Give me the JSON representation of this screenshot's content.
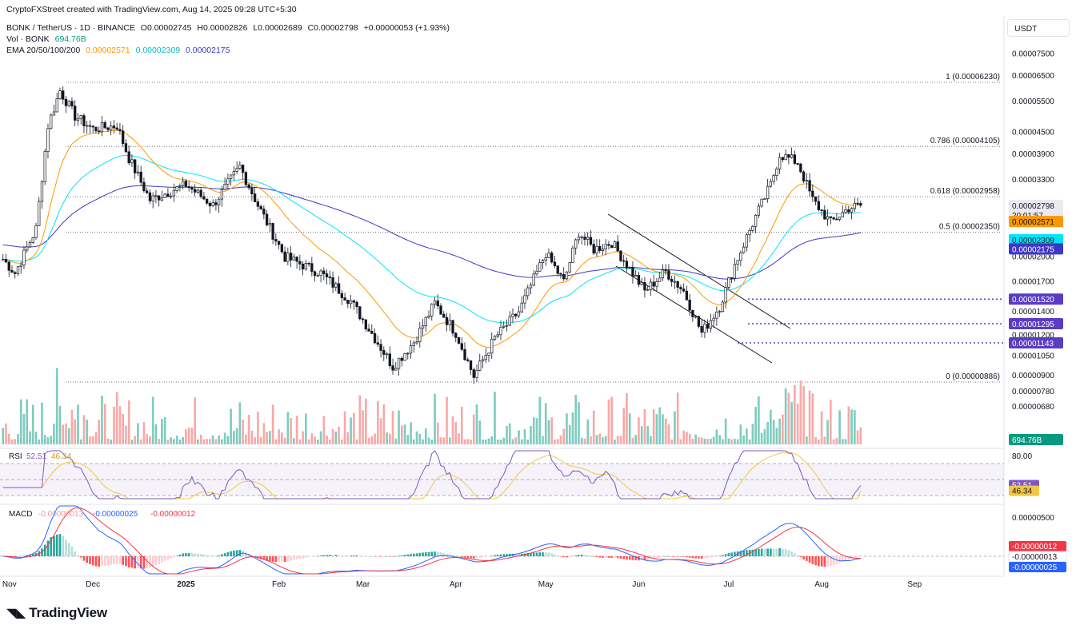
{
  "attribution": "CryptoFXStreet created with TradingView.com, Aug 14, 2025 09:28 UTC+5:30",
  "header": {
    "symbol": "BONK / TetherUS · 1D · BINANCE",
    "open": "O0.00002745",
    "high": "H0.00002826",
    "low": "L0.00002689",
    "close": "C0.00002798",
    "change": "+0.00000053 (+1.93%)",
    "vol_label": "Vol · BONK",
    "vol_value": "694.76B",
    "ema_label": "EMA 20/50/100/200",
    "ema20": "0.00002571",
    "ema50": "0.00002309",
    "ema200": "0.00002175"
  },
  "currency_button": "USDT",
  "brand": "TradingView",
  "colors": {
    "up": "#089981",
    "down": "#f23645",
    "ema20": "#ff9800",
    "ema50": "#00e5ff",
    "ema200": "#3f37c9",
    "fib": "#787b86",
    "support": "#5b3cc4",
    "rsi": "#7e57c2",
    "rsi_ma": "#f2c744",
    "macd": "#2962ff",
    "signal": "#f23645"
  },
  "chart_data": {
    "type": "candlestick",
    "price_scale": "log",
    "y_ticks": [
      "0.00007500",
      "0.00006500",
      "0.00005500",
      "0.00004500",
      "0.00003900",
      "0.00003300",
      "0.00002000",
      "0.00001700",
      "0.00001400",
      "0.00001200",
      "0.00001050",
      "0.00000900",
      "0.00000780",
      "0.00000680"
    ],
    "x_ticks": [
      "Nov",
      "Dec",
      "2025",
      "Feb",
      "Mar",
      "Apr",
      "May",
      "Jun",
      "Jul",
      "Aug",
      "Sep"
    ],
    "price_path": [
      [
        "2024-11-01",
        1.97e-05
      ],
      [
        "2024-11-05",
        1.8e-05
      ],
      [
        "2024-11-12",
        2.4e-05
      ],
      [
        "2024-11-16",
        4.7e-05
      ],
      [
        "2024-11-20",
        5.9e-05
      ],
      [
        "2024-11-25",
        5e-05
      ],
      [
        "2024-12-01",
        4.6e-05
      ],
      [
        "2024-12-09",
        4.7e-05
      ],
      [
        "2024-12-13",
        3.8e-05
      ],
      [
        "2024-12-20",
        2.9e-05
      ],
      [
        "2025-01-01",
        3.2e-05
      ],
      [
        "2025-01-10",
        2.8e-05
      ],
      [
        "2025-01-19",
        3.6e-05
      ],
      [
        "2025-01-25",
        2.8e-05
      ],
      [
        "2025-02-03",
        2e-05
      ],
      [
        "2025-02-15",
        1.8e-05
      ],
      [
        "2025-02-25",
        1.5e-05
      ],
      [
        "2025-03-05",
        1.18e-05
      ],
      [
        "2025-03-11",
        9.8e-06
      ],
      [
        "2025-03-18",
        1.15e-05
      ],
      [
        "2025-03-25",
        1.48e-05
      ],
      [
        "2025-04-01",
        1.22e-05
      ],
      [
        "2025-04-07",
        9.2e-06
      ],
      [
        "2025-04-14",
        1.18e-05
      ],
      [
        "2025-04-22",
        1.4e-05
      ],
      [
        "2025-05-01",
        2.05e-05
      ],
      [
        "2025-05-07",
        1.7e-05
      ],
      [
        "2025-05-12",
        2.35e-05
      ],
      [
        "2025-05-17",
        2.1e-05
      ],
      [
        "2025-05-23",
        2.2e-05
      ],
      [
        "2025-05-29",
        1.85e-05
      ],
      [
        "2025-06-03",
        1.6e-05
      ],
      [
        "2025-06-10",
        1.82e-05
      ],
      [
        "2025-06-16",
        1.6e-05
      ],
      [
        "2025-06-22",
        1.22e-05
      ],
      [
        "2025-06-28",
        1.45e-05
      ],
      [
        "2025-07-03",
        1.9e-05
      ],
      [
        "2025-07-10",
        2.6e-05
      ],
      [
        "2025-07-15",
        3.2e-05
      ],
      [
        "2025-07-18",
        3.9e-05
      ],
      [
        "2025-07-24",
        3.7e-05
      ],
      [
        "2025-07-29",
        2.9e-05
      ],
      [
        "2025-08-04",
        2.5e-05
      ],
      [
        "2025-08-10",
        2.75e-05
      ],
      [
        "2025-08-14",
        2.798e-05
      ]
    ],
    "fib_levels": [
      {
        "label": "1 (0.00006230)",
        "value": 6.23e-05
      },
      {
        "label": "0.786 (0.00004105)",
        "value": 4.105e-05
      },
      {
        "label": "0.618 (0.00002958)",
        "value": 2.958e-05
      },
      {
        "label": "0.5 (0.00002350)",
        "value": 2.35e-05
      },
      {
        "label": "0 (0.00000886)",
        "value": 8.86e-06
      }
    ],
    "support_levels": [
      {
        "label": "0.00001520",
        "value": 1.52e-05
      },
      {
        "label": "0.00001295",
        "value": 1.295e-05
      },
      {
        "label": "0.00001143",
        "value": 1.143e-05
      }
    ],
    "price_tags": {
      "last": "0.00002798",
      "countdown": "20:01:57",
      "ema20": "0.00002571",
      "ema50": "0.00002309",
      "ema200": "0.00002175",
      "volume": "694.76B"
    },
    "ema": {
      "ema20_last": 2.571e-05,
      "ema50_last": 2.309e-05,
      "ema200_last": 2.175e-05
    },
    "rsi": {
      "label": "RSI",
      "value": "52.51",
      "ma": "46.34",
      "ticks": [
        "80.00"
      ],
      "last": 52.51,
      "ma_last": 46.34
    },
    "macd": {
      "label": "MACD",
      "values": [
        "-0.00000013",
        "-0.00000025",
        "-0.00000012"
      ],
      "ticks": [
        "0.00000500"
      ],
      "tags": [
        "-0.00000012",
        "-0.00000013",
        "-0.00000025"
      ]
    }
  }
}
